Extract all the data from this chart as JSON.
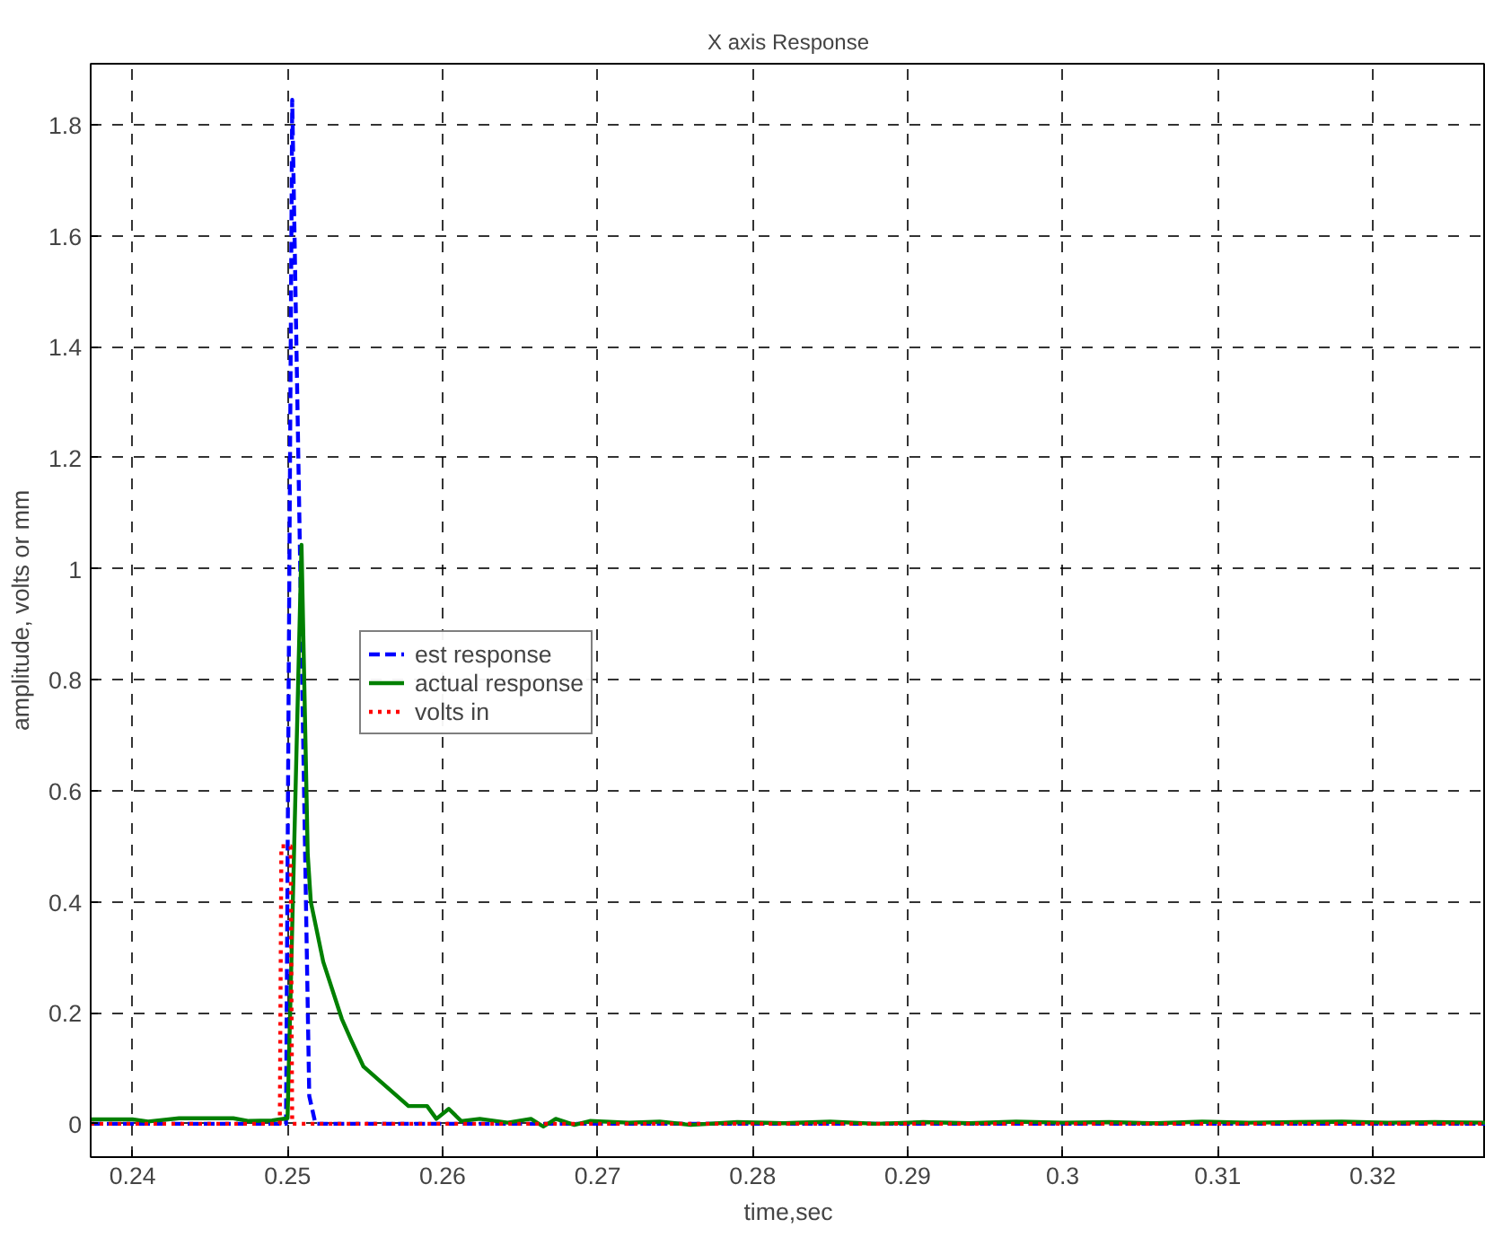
{
  "chart_data": {
    "type": "line",
    "title": "X axis Response",
    "xlabel": "time,sec",
    "ylabel": "amplitude, volts or mm",
    "xlim": [
      0.2373,
      0.3273
    ],
    "ylim": [
      -0.06,
      1.91
    ],
    "xticks": [
      0.24,
      0.25,
      0.26,
      0.27,
      0.28,
      0.29,
      0.3,
      0.31,
      0.32
    ],
    "yticks": [
      0,
      0.2,
      0.4,
      0.6,
      0.8,
      1,
      1.2,
      1.4,
      1.6,
      1.8
    ],
    "grid": true,
    "legend": "center left",
    "series": [
      {
        "name": "est response",
        "color": "#0000ff",
        "line_style": "dashed",
        "x": [
          0.2373,
          0.2499,
          0.2503,
          0.2514,
          0.2518,
          0.3273
        ],
        "values": [
          0,
          0,
          1.845,
          0.05,
          0,
          0
        ]
      },
      {
        "name": "actual response",
        "color": "#008000",
        "line_style": "solid",
        "x": [
          0.2373,
          0.24,
          0.241,
          0.243,
          0.2465,
          0.2475,
          0.249,
          0.25,
          0.2509,
          0.2513,
          0.2515,
          0.2523,
          0.2535,
          0.2541,
          0.2549,
          0.256,
          0.2578,
          0.259,
          0.2596,
          0.2604,
          0.2612,
          0.2624,
          0.2642,
          0.2657,
          0.2665,
          0.2673,
          0.2685,
          0.2695,
          0.272,
          0.274,
          0.276,
          0.279,
          0.282,
          0.285,
          0.288,
          0.291,
          0.294,
          0.297,
          0.3,
          0.303,
          0.306,
          0.309,
          0.312,
          0.315,
          0.318,
          0.321,
          0.324,
          0.3273
        ],
        "values": [
          0.008,
          0.008,
          0.004,
          0.01,
          0.01,
          0.005,
          0.006,
          0.01,
          1.043,
          0.486,
          0.4,
          0.292,
          0.189,
          0.151,
          0.103,
          0.076,
          0.032,
          0.032,
          0.009,
          0.027,
          0.005,
          0.009,
          0.002,
          0.009,
          -0.005,
          0.009,
          -0.002,
          0.005,
          0.002,
          0.004,
          -0.002,
          0.003,
          0.001,
          0.004,
          0.0,
          0.003,
          0.001,
          0.004,
          0.002,
          0.003,
          0.001,
          0.004,
          0.002,
          0.003,
          0.004,
          0.002,
          0.003,
          0.002
        ]
      },
      {
        "name": "volts in",
        "color": "#ff0000",
        "line_style": "dotted",
        "x": [
          0.2373,
          0.2495,
          0.2496,
          0.2502,
          0.2503,
          0.3273
        ],
        "values": [
          0,
          0,
          0.5,
          0.5,
          0,
          0
        ]
      }
    ]
  }
}
